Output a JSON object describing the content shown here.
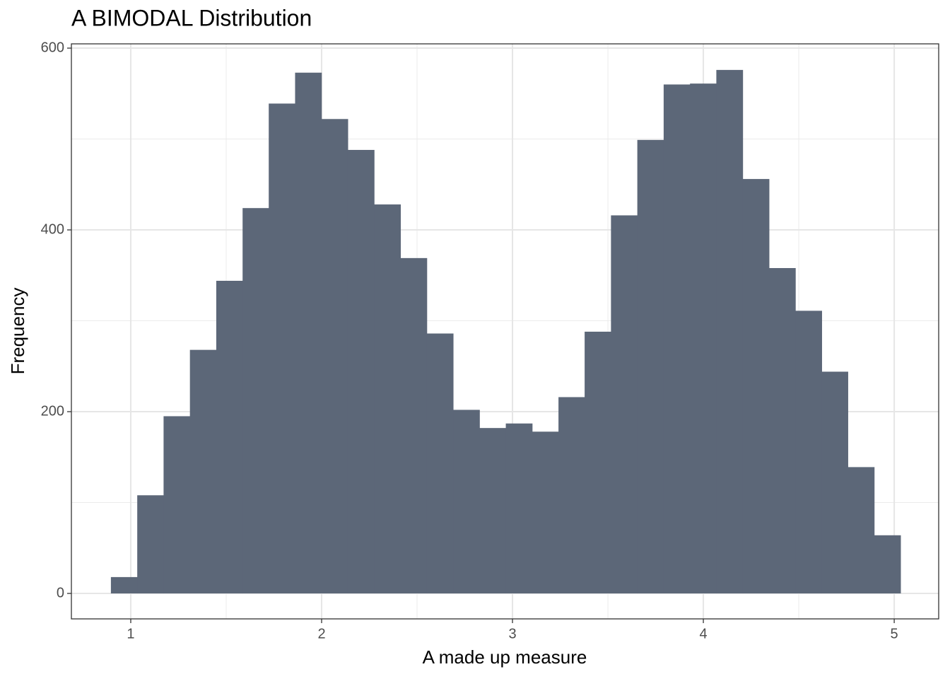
{
  "chart_data": {
    "type": "histogram",
    "title": "A BIMODAL Distribution",
    "x_label": "A made up measure",
    "y_label": "Frequency",
    "bins": [
      0.896,
      1.034,
      1.172,
      1.31,
      1.448,
      1.586,
      1.723,
      1.861,
      1.999,
      2.137,
      2.275,
      2.413,
      2.551,
      2.689,
      2.827,
      2.965,
      3.103,
      3.241,
      3.378,
      3.516,
      3.654,
      3.792,
      3.93,
      4.068,
      4.206,
      4.344,
      4.482,
      4.62,
      4.757,
      4.895,
      5.033
    ],
    "values": [
      18,
      108,
      195,
      268,
      344,
      424,
      539,
      573,
      522,
      488,
      428,
      369,
      286,
      202,
      182,
      187,
      178,
      216,
      288,
      416,
      499,
      560,
      561,
      576,
      456,
      358,
      311,
      244,
      139,
      64
    ],
    "color": "#5c6778",
    "xlim": [
      0.689,
      5.233
    ],
    "xticks": [
      1,
      2,
      3,
      4,
      5
    ],
    "ylim": [
      -28,
      604.7
    ],
    "yticks": [
      0,
      200,
      400,
      600
    ],
    "grid": true
  }
}
